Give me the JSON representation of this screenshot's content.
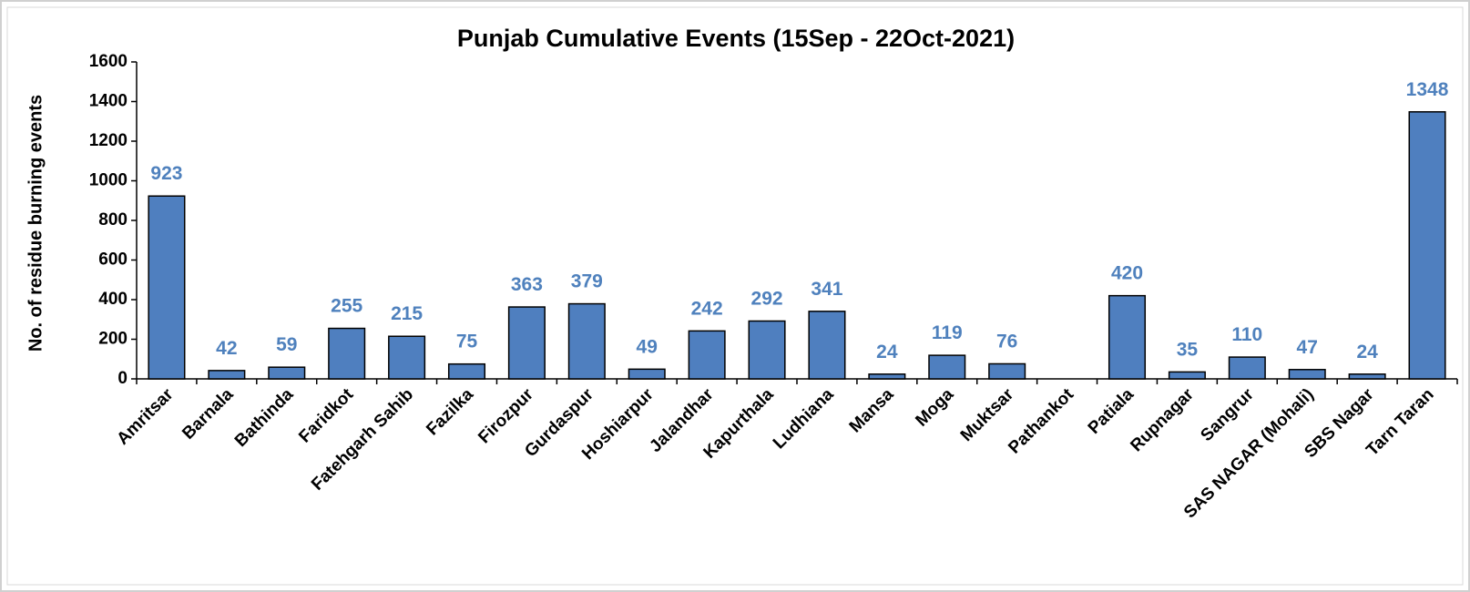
{
  "chart_data": {
    "type": "bar",
    "title": "Punjab Cumulative Events (15Sep - 22Oct-2021)",
    "y_label": "No. of residue burning events",
    "categories": [
      "Amritsar",
      "Barnala",
      "Bathinda",
      "Faridkot",
      "Fatehgarh Sahib",
      "Fazilka",
      "Firozpur",
      "Gurdaspur",
      "Hoshiarpur",
      "Jalandhar",
      "Kapurthala",
      "Ludhiana",
      "Mansa",
      "Moga",
      "Muktsar",
      "Pathankot",
      "Patiala",
      "Rupnagar",
      "Sangrur",
      "SAS NAGAR (Mohali)",
      "SBS Nagar",
      "Tarn Taran"
    ],
    "values": [
      923,
      42,
      59,
      255,
      215,
      75,
      363,
      379,
      49,
      242,
      292,
      341,
      24,
      119,
      76,
      null,
      420,
      35,
      110,
      47,
      24,
      1348
    ],
    "color": "#4f7fbf",
    "ylim": [
      0,
      1600
    ],
    "yticks": [
      0,
      200,
      400,
      600,
      800,
      1000,
      1200,
      1400,
      1600
    ],
    "grid": false
  }
}
